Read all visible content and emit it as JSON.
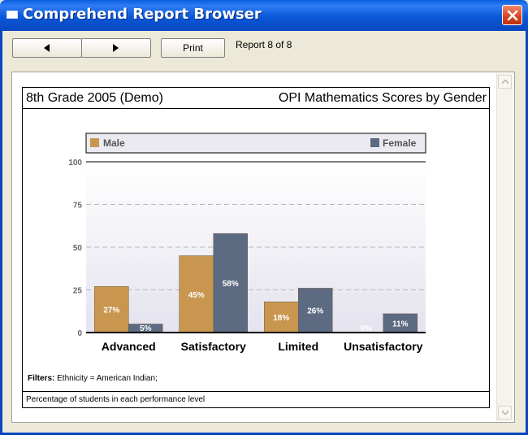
{
  "window": {
    "title": "Comprehend Report Browser"
  },
  "toolbar": {
    "prev_icon": "triangle-left",
    "next_icon": "triangle-right",
    "print_label": "Print",
    "report_count": "Report 8 of 8"
  },
  "report": {
    "header_left": "8th Grade 2005 (Demo)",
    "header_right": "OPI Mathematics Scores by Gender",
    "filters_label": "Filters:",
    "filters_value": "Ethnicity = American Indian;",
    "footer": "Percentage of students in each performance level"
  },
  "colors": {
    "male": "#c8964e",
    "female": "#5c6b82",
    "titlebar": "#0a58d8"
  },
  "chart_data": {
    "type": "bar",
    "categories": [
      "Advanced",
      "Satisfactory",
      "Limited",
      "Unsatisfactory"
    ],
    "series": [
      {
        "name": "Male",
        "values": [
          27,
          45,
          18,
          0
        ],
        "labels": [
          "27%",
          "45%",
          "18%",
          "0%"
        ]
      },
      {
        "name": "Female",
        "values": [
          5,
          58,
          26,
          11
        ],
        "labels": [
          "5%",
          "58%",
          "26%",
          "11%"
        ]
      }
    ],
    "yticks": [
      0,
      25,
      50,
      75,
      100
    ],
    "ylim": [
      0,
      100
    ],
    "legend": "top",
    "grid": true
  }
}
